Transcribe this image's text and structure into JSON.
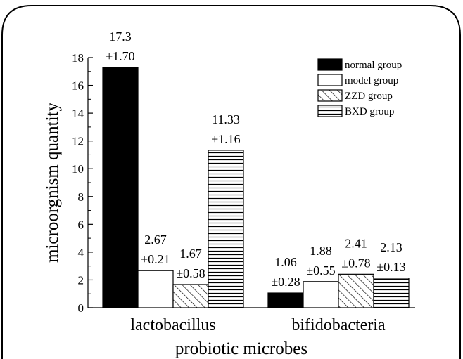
{
  "chart_data": {
    "type": "bar",
    "xlabel": "probiotic microbes",
    "ylabel": "microorgnism quantity",
    "categories": [
      "lactobacillus",
      "bifidobacteria"
    ],
    "ylim": [
      0,
      18
    ],
    "yticks": [
      0,
      2,
      4,
      6,
      8,
      10,
      12,
      14,
      16,
      18
    ],
    "legend_position": "top-right",
    "grid": false,
    "series": [
      {
        "name": "normal group",
        "values": [
          17.3,
          1.06
        ],
        "errors": [
          "±1.70",
          "±0.28"
        ],
        "labels": [
          "17.3",
          "1.06"
        ],
        "pattern": "solid-black"
      },
      {
        "name": "model group",
        "values": [
          2.67,
          1.88
        ],
        "errors": [
          "±0.21",
          "±0.55"
        ],
        "labels": [
          "2.67",
          "1.88"
        ],
        "pattern": "white"
      },
      {
        "name": "ZZD group",
        "values": [
          1.67,
          2.41
        ],
        "errors": [
          "±0.58",
          "±0.78"
        ],
        "labels": [
          "1.67",
          "2.41"
        ],
        "pattern": "diagonal-hatch"
      },
      {
        "name": "BXD group",
        "values": [
          11.33,
          2.13
        ],
        "errors": [
          "±1.16",
          "±0.13"
        ],
        "labels": [
          "11.33",
          "2.13"
        ],
        "pattern": "horizontal-lines"
      }
    ]
  }
}
